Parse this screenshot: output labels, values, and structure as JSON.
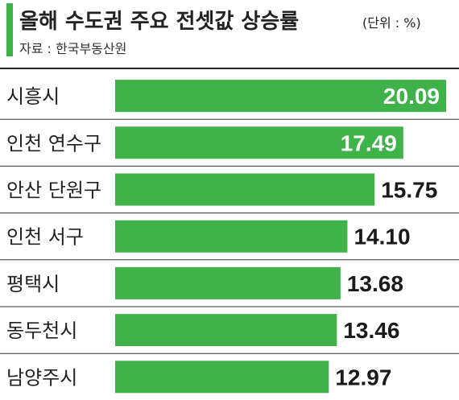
{
  "header": {
    "title": "올해 수도권 주요 전셋값 상승률",
    "unit": "(단위 : %)",
    "source": "자료 : 한국부동산원",
    "accent_color": "#3fb249"
  },
  "chart_data": {
    "type": "bar",
    "orientation": "horizontal",
    "title": "올해 수도권 주요 전셋값 상승률",
    "unit": "(단위 : %)",
    "categories": [
      "시흥시",
      "인천 연수구",
      "안산 단원구",
      "인천 서구",
      "평택시",
      "동두천시",
      "남양주시"
    ],
    "values": [
      20.09,
      17.49,
      15.75,
      14.1,
      13.68,
      13.46,
      12.97
    ],
    "value_labels": [
      "20.09",
      "17.49",
      "15.75",
      "14.10",
      "13.68",
      "13.46",
      "12.97"
    ],
    "label_inside": [
      true,
      true,
      false,
      false,
      false,
      false,
      false
    ],
    "bar_color": "#3fb249",
    "inside_label_color": "#ffffff",
    "outside_label_color": "#1a1a1a",
    "grid": false
  }
}
